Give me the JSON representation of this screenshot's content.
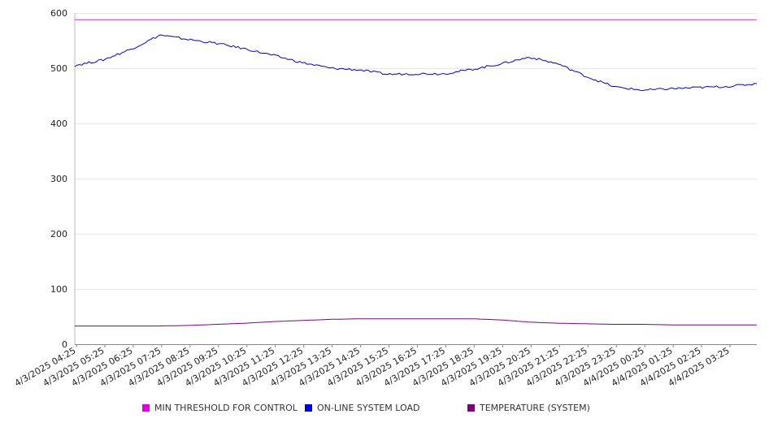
{
  "chart_data": {
    "type": "line",
    "y_ticks": [
      "600",
      "500",
      "400",
      "300",
      "200",
      "100",
      "0"
    ],
    "x_tick_labels": [
      "4/3/2025 04:25",
      "4/3/2025 05:25",
      "4/3/2025 06:25",
      "4/3/2025 07:25",
      "4/3/2025 08:25",
      "4/3/2025 09:25",
      "4/3/2025 10:25",
      "4/3/2025 11:25",
      "4/3/2025 12:25",
      "4/3/2025 13:25",
      "4/3/2025 14:25",
      "4/3/2025 15:25",
      "4/3/2025 16:25",
      "4/3/2025 17:25",
      "4/3/2025 18:25",
      "4/3/2025 19:25",
      "4/3/2025 20:25",
      "4/3/2025 21:25",
      "4/3/2025 22:25",
      "4/3/2025 23:25",
      "4/4/2025 00:25",
      "4/4/2025 01:25",
      "4/4/2025 02:25",
      "4/4/2025 03:25"
    ],
    "ylim": [
      0,
      600
    ],
    "grid": true,
    "legend_position": "bottom",
    "series": [
      {
        "name": "MIN THRESHOLD FOR CONTROL",
        "color": "#cc33cc",
        "values": [
          588,
          588,
          588,
          588,
          588,
          588,
          588,
          588,
          588,
          588,
          588,
          588,
          588,
          588,
          588,
          588,
          588,
          588,
          588,
          588,
          588,
          588,
          588,
          588,
          588
        ]
      },
      {
        "name": "ON-LINE SYSTEM LOAD",
        "color": "#0000cc",
        "values": [
          505,
          515,
          535,
          560,
          552,
          545,
          535,
          523,
          510,
          500,
          497,
          489,
          490,
          490,
          498,
          508,
          520,
          508,
          485,
          466,
          460,
          463,
          465,
          467,
          472
        ]
      },
      {
        "name": "TEMPERATURE (SYSTEM)",
        "color": "#800080",
        "values": [
          33,
          33,
          33,
          33,
          34,
          36,
          38,
          41,
          43,
          45,
          46,
          46,
          46,
          46,
          46,
          44,
          40,
          38,
          37,
          36,
          36,
          35,
          35,
          35,
          35
        ]
      }
    ]
  }
}
